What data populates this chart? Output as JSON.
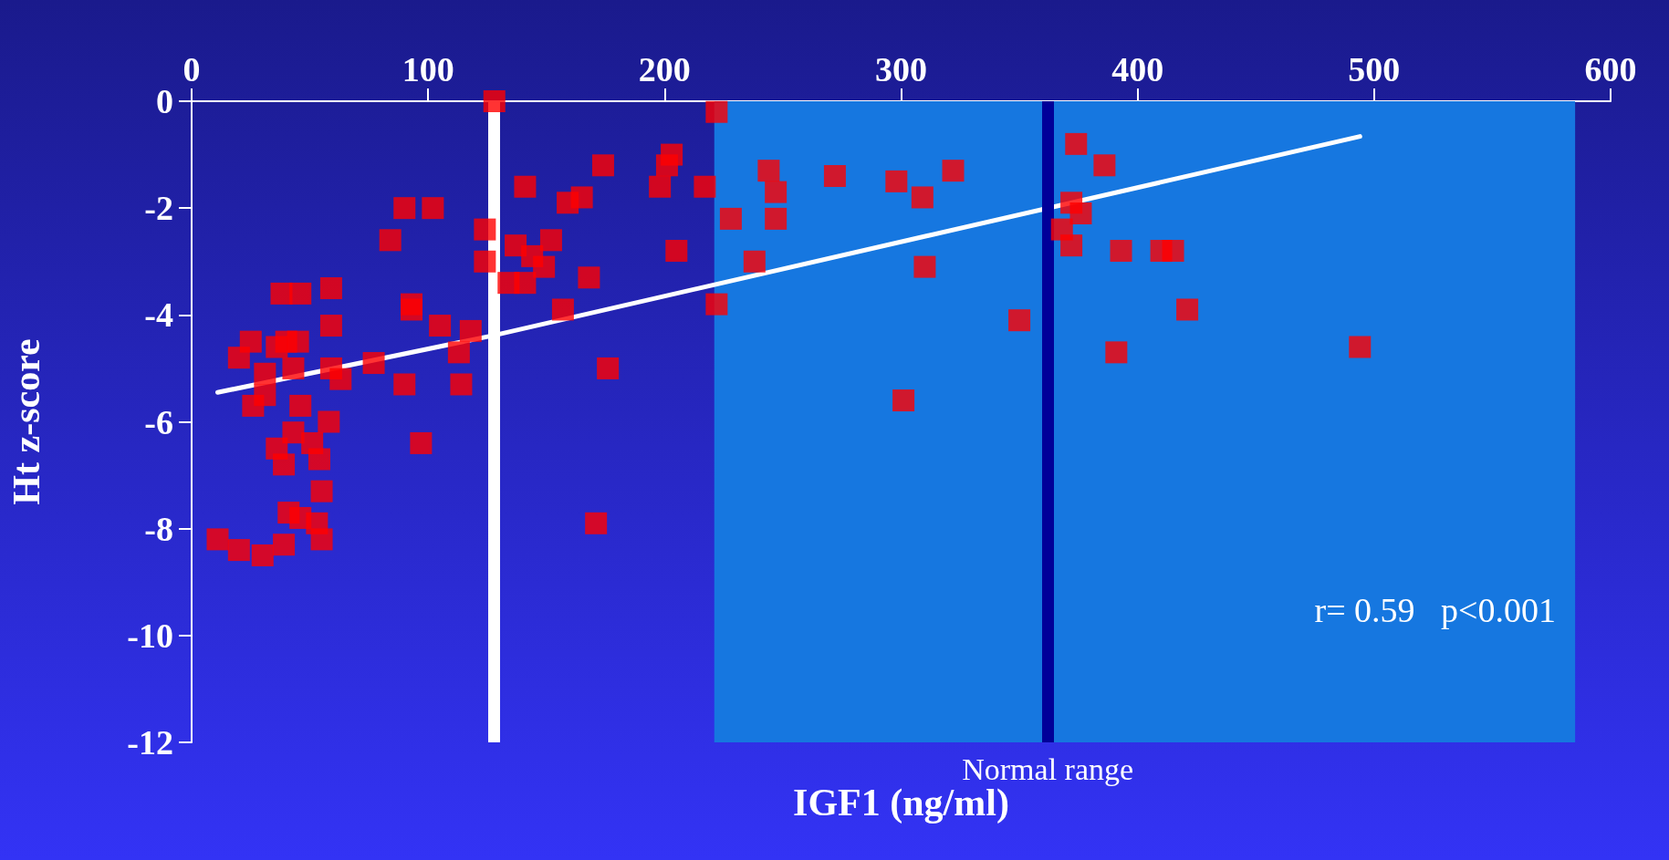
{
  "chart_data": {
    "type": "scatter",
    "xlabel": "IGF1 (ng/ml)",
    "ylabel": "Ht z-score",
    "xlim": [
      0,
      600
    ],
    "xticks": [
      0,
      100,
      200,
      300,
      400,
      500,
      600
    ],
    "ylim": [
      -12,
      0
    ],
    "yticks": [
      0,
      -2,
      -4,
      -6,
      -8,
      -10,
      -12
    ],
    "grid": false,
    "marker": "square",
    "series": [
      {
        "color": "#ff0000",
        "x": [
          11,
          20,
          30,
          20,
          25,
          31,
          26,
          31,
          38,
          46,
          59,
          59,
          36,
          40,
          45,
          43,
          46,
          59,
          63,
          58,
          36,
          39,
          43,
          51,
          54,
          55,
          41,
          46,
          53,
          55,
          39,
          77,
          84,
          90,
          102,
          93,
          93,
          90,
          105,
          97,
          113,
          114,
          118,
          124,
          124,
          128,
          134,
          137,
          141,
          141,
          144,
          149,
          152,
          159,
          165,
          157,
          168,
          174,
          171,
          176,
          198,
          201,
          203,
          205,
          217,
          222,
          222,
          228,
          238,
          244,
          247,
          247,
          272,
          298,
          301,
          309,
          310,
          322,
          350,
          374,
          386,
          372,
          376,
          368,
          372,
          393,
          391,
          410,
          415,
          421,
          494
        ],
        "values": [
          -8.2,
          -8.4,
          -8.5,
          -4.8,
          -4.5,
          -5.1,
          -5.7,
          -5.5,
          -3.6,
          -3.6,
          -3.5,
          -4.2,
          -4.6,
          -4.5,
          -4.5,
          -5.0,
          -5.7,
          -5.0,
          -5.2,
          -6.0,
          -6.5,
          -6.8,
          -6.2,
          -6.4,
          -6.7,
          -7.3,
          -7.7,
          -7.8,
          -7.9,
          -8.2,
          -8.3,
          -4.9,
          -2.6,
          -2.0,
          -2.0,
          -3.8,
          -3.9,
          -5.3,
          -4.2,
          -6.4,
          -4.7,
          -5.3,
          -4.3,
          -2.4,
          -3.0,
          0.0,
          -3.4,
          -2.7,
          -3.4,
          -1.6,
          -2.9,
          -3.1,
          -2.6,
          -1.9,
          -1.8,
          -3.9,
          -3.3,
          -1.2,
          -7.9,
          -5.0,
          -1.6,
          -1.2,
          -1.0,
          -2.8,
          -1.6,
          -0.2,
          -3.8,
          -2.2,
          -3.0,
          -1.3,
          -1.7,
          -2.2,
          -1.4,
          -1.5,
          -5.6,
          -1.8,
          -3.1,
          -1.3,
          -4.1,
          -0.8,
          -1.2,
          -1.9,
          -2.1,
          -2.4,
          -2.7,
          -2.8,
          -4.7,
          -2.8,
          -2.8,
          -3.9,
          -4.6
        ]
      },
      {
        "type": "line",
        "marker": "none",
        "color": "#ffffff",
        "x": [
          11,
          128,
          494
        ],
        "values": [
          -5.45,
          -4.38,
          -0.66
        ]
      }
    ],
    "ref_lines": [
      {
        "axis": "x",
        "value": 128,
        "color": "#ffffff"
      },
      {
        "axis": "x",
        "value": 362,
        "label": "Normal range",
        "color": "#000099"
      }
    ],
    "bands": [
      {
        "axis": "x",
        "from": 221,
        "to": 585,
        "color": "#1677e0"
      }
    ],
    "annotations": [
      "r= 0.59   p<0.001"
    ]
  }
}
